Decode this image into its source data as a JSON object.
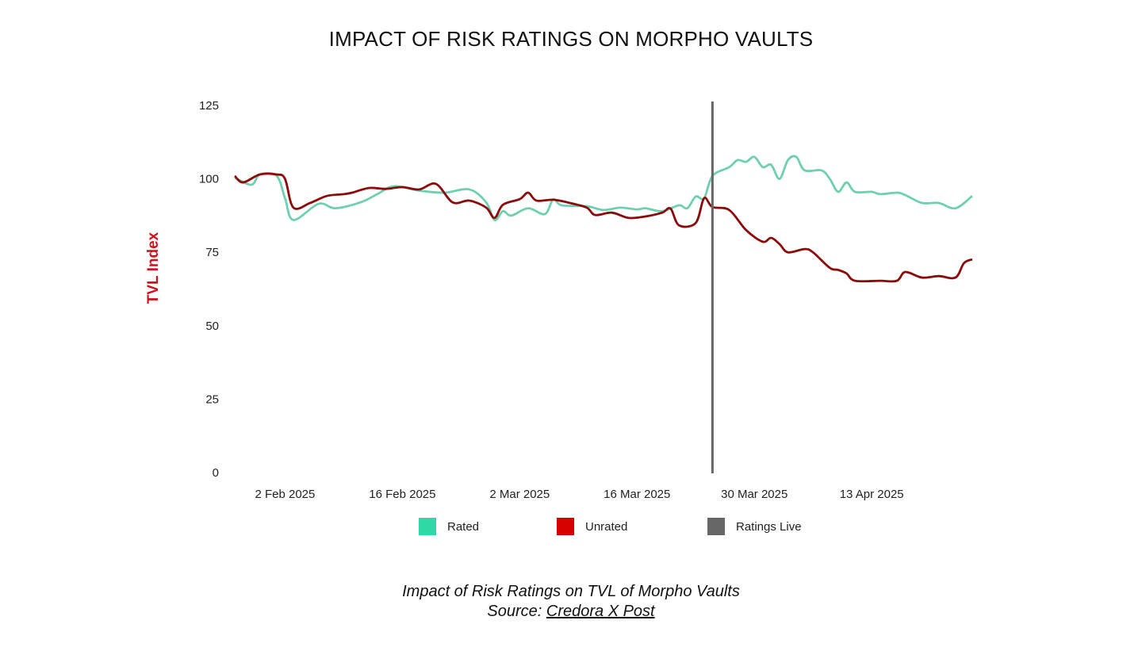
{
  "chart_data": {
    "type": "line",
    "title": "IMPACT OF RISK RATINGS ON MORPHO VAULTS",
    "ylabel": "TVL Index",
    "xlabel": "",
    "ylim": [
      0,
      125
    ],
    "yticks": [
      0,
      25,
      50,
      75,
      100,
      125
    ],
    "xlim": [
      "2025-01-27",
      "2025-04-25"
    ],
    "xticks": [
      {
        "date": "2025-02-02",
        "label": "2 Feb 2025"
      },
      {
        "date": "2025-02-16",
        "label": "16 Feb 2025"
      },
      {
        "date": "2025-03-02",
        "label": "2 Mar 2025"
      },
      {
        "date": "2025-03-16",
        "label": "16 Mar 2025"
      },
      {
        "date": "2025-03-30",
        "label": "30 Mar 2025"
      },
      {
        "date": "2025-04-13",
        "label": "13 Apr 2025"
      }
    ],
    "grid": false,
    "legend_placement": "bottom",
    "annotations": [
      {
        "type": "vertical-line",
        "date": "2025-03-25",
        "name": "Ratings Live",
        "color": "#666666"
      }
    ],
    "series": [
      {
        "name": "Rated",
        "color": "#6fcfb1",
        "legend_color": "#2ed8a7",
        "x": [
          "2025-01-27",
          "2025-01-29",
          "2025-01-30",
          "2025-02-01",
          "2025-02-02",
          "2025-02-03",
          "2025-02-06",
          "2025-02-08",
          "2025-02-11",
          "2025-02-13",
          "2025-02-15",
          "2025-02-18",
          "2025-02-21",
          "2025-02-24",
          "2025-02-26",
          "2025-02-27",
          "2025-02-28",
          "2025-03-01",
          "2025-03-03",
          "2025-03-05",
          "2025-03-06",
          "2025-03-07",
          "2025-03-10",
          "2025-03-12",
          "2025-03-14",
          "2025-03-16",
          "2025-03-17",
          "2025-03-19",
          "2025-03-21",
          "2025-03-22",
          "2025-03-23",
          "2025-03-24",
          "2025-03-25",
          "2025-03-27",
          "2025-03-28",
          "2025-03-29",
          "2025-03-30",
          "2025-03-31",
          "2025-04-01",
          "2025-04-02",
          "2025-04-03",
          "2025-04-04",
          "2025-04-05",
          "2025-04-07",
          "2025-04-08",
          "2025-04-09",
          "2025-04-10",
          "2025-04-11",
          "2025-04-13",
          "2025-04-14",
          "2025-04-16",
          "2025-04-17",
          "2025-04-19",
          "2025-04-21",
          "2025-04-23",
          "2025-04-25"
        ],
        "values": [
          100.4,
          98,
          101.5,
          101,
          93.4,
          86,
          91.5,
          90,
          92,
          94.8,
          97.5,
          96,
          95.3,
          96.4,
          92,
          86,
          89,
          87.5,
          90,
          88,
          93,
          91,
          90.7,
          89.4,
          90.2,
          89.6,
          90,
          89,
          91,
          90,
          94,
          93.4,
          101,
          104,
          106.4,
          105.8,
          107.5,
          104,
          104.8,
          100,
          106.4,
          107.5,
          102.9,
          102.9,
          100,
          95.6,
          98.8,
          95.6,
          95.6,
          94.8,
          95.3,
          94.5,
          91.8,
          91.8,
          90,
          94.2
        ]
      },
      {
        "name": "Unrated",
        "color": "#8b0a0a",
        "legend_color": "#d80000",
        "x": [
          "2025-01-27",
          "2025-01-28",
          "2025-01-30",
          "2025-02-01",
          "2025-02-02",
          "2025-02-03",
          "2025-02-05",
          "2025-02-07",
          "2025-02-09",
          "2025-02-10",
          "2025-02-12",
          "2025-02-14",
          "2025-02-16",
          "2025-02-18",
          "2025-02-20",
          "2025-02-22",
          "2025-02-24",
          "2025-02-26",
          "2025-02-27",
          "2025-02-28",
          "2025-03-02",
          "2025-03-03",
          "2025-03-04",
          "2025-03-06",
          "2025-03-08",
          "2025-03-10",
          "2025-03-11",
          "2025-03-13",
          "2025-03-15",
          "2025-03-17",
          "2025-03-19",
          "2025-03-20",
          "2025-03-21",
          "2025-03-23",
          "2025-03-24",
          "2025-03-25",
          "2025-03-27",
          "2025-03-29",
          "2025-03-31",
          "2025-04-01",
          "2025-04-02",
          "2025-04-03",
          "2025-04-05",
          "2025-04-06",
          "2025-04-08",
          "2025-04-09",
          "2025-04-10",
          "2025-04-11",
          "2025-04-14",
          "2025-04-16",
          "2025-04-17",
          "2025-04-19",
          "2025-04-21",
          "2025-04-23",
          "2025-04-24",
          "2025-04-25"
        ],
        "values": [
          101,
          98.8,
          101.5,
          101.5,
          100,
          90.2,
          91.8,
          94.2,
          94.8,
          95.3,
          96.9,
          96.6,
          97.2,
          96.4,
          98.3,
          92,
          92.6,
          90.2,
          86.7,
          91.2,
          93.1,
          95.3,
          92.6,
          92.9,
          91.8,
          90.2,
          87.7,
          88.5,
          86.7,
          87.2,
          88.5,
          89.9,
          84.2,
          85,
          93.4,
          90.4,
          89.4,
          82.6,
          78.6,
          79.9,
          77.8,
          75,
          76.1,
          75,
          69.7,
          69,
          67.8,
          65.3,
          65.3,
          65.3,
          68.3,
          66.4,
          66.9,
          66.4,
          71.3,
          72.6
        ]
      }
    ]
  },
  "caption": {
    "line1": "Impact of Risk Ratings on TVL of Morpho Vaults",
    "source_prefix": "Source: ",
    "source_link": "Credora X Post"
  }
}
